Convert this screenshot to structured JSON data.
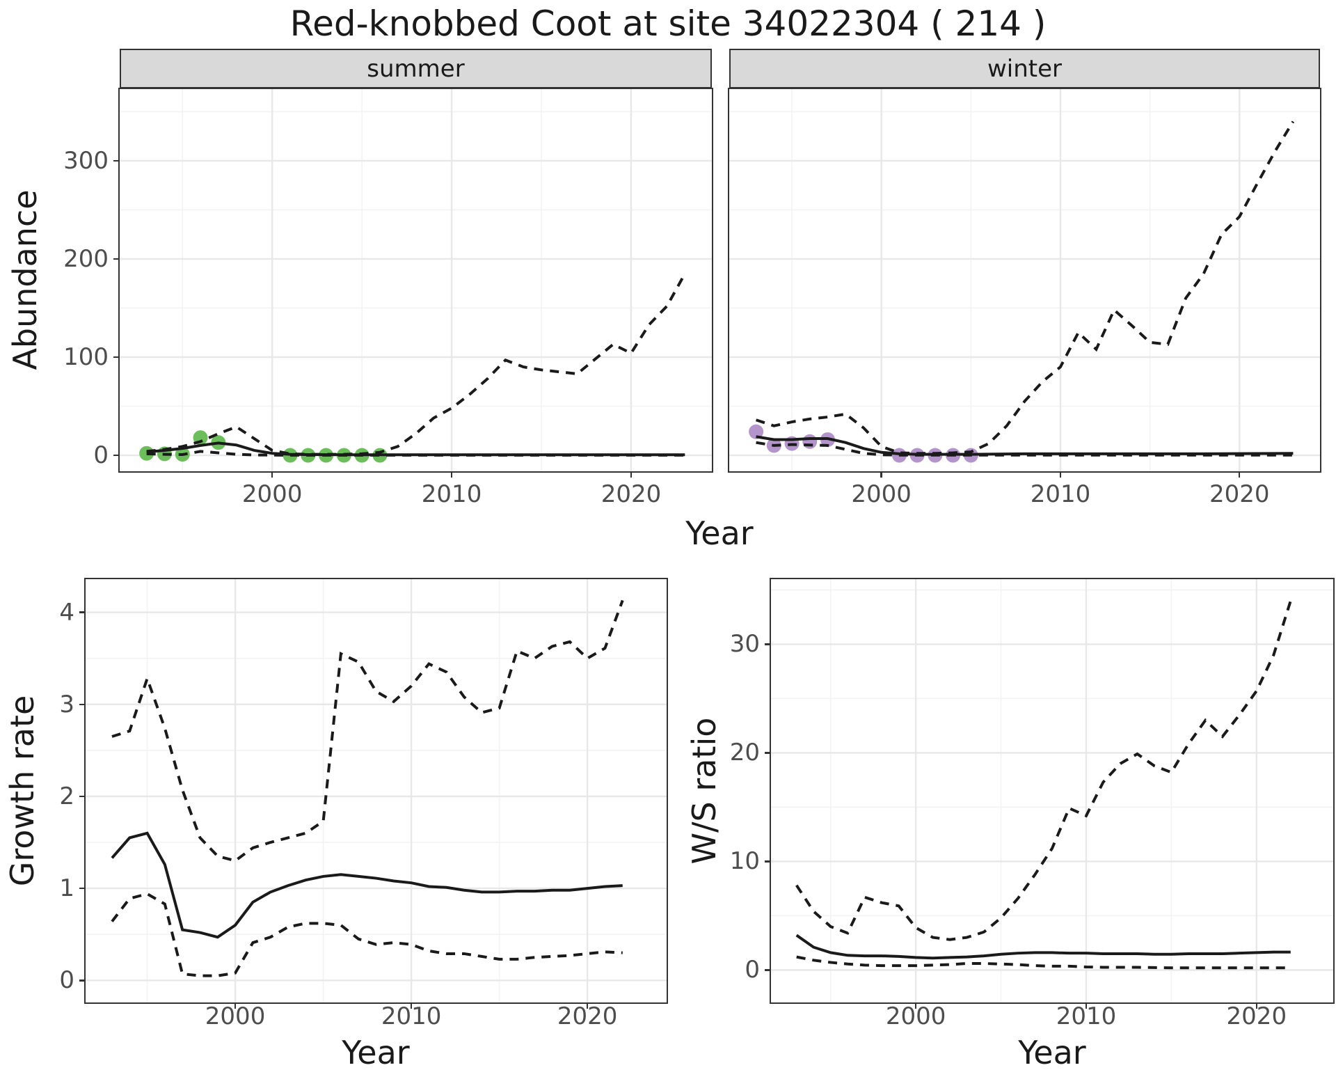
{
  "title": "Red-knobbed Coot at site 34022304 ( 214 )",
  "colors": {
    "summer_points": "#6CBE5B",
    "winter_points": "#B394CB",
    "line": "#1A1A1A",
    "grid_major": "#E8E8E8",
    "grid_minor": "#F3F3F3",
    "strip_bg": "#D9D9D9",
    "panel_border": "#333333",
    "tick_text": "#4D4D4D"
  },
  "chart_data": [
    {
      "type": "line",
      "facet": "summer",
      "ylabel": "Abundance",
      "xlabel": "Year",
      "grid": true,
      "legend": "none",
      "xlim": [
        1991.5,
        2024.5
      ],
      "ylim": [
        -16.3,
        373
      ],
      "xticks": [
        2000,
        2010,
        2020
      ],
      "yticks": [
        0,
        100,
        200,
        300
      ],
      "x": [
        1993,
        1994,
        1995,
        1996,
        1997,
        1998,
        1999,
        2000,
        2001,
        2002,
        2003,
        2004,
        2005,
        2006,
        2007,
        2008,
        2009,
        2010,
        2011,
        2012,
        2013,
        2014,
        2015,
        2016,
        2017,
        2018,
        2019,
        2020,
        2021,
        2022,
        2023
      ],
      "series": [
        {
          "name": "lower_ci",
          "style": "dashed",
          "values": [
            1.5,
            1,
            0.7,
            4,
            2.5,
            1,
            0.3,
            0.2,
            0.1,
            0.1,
            0.1,
            0.1,
            0.1,
            0.1,
            0.1,
            0.1,
            0.1,
            0.1,
            0.1,
            0.1,
            0.1,
            0.1,
            0.1,
            0.1,
            0.1,
            0.1,
            0.1,
            0.1,
            0.1,
            0.1,
            0.1
          ]
        },
        {
          "name": "upper_ci",
          "style": "dashed",
          "values": [
            4,
            6,
            9,
            14,
            22,
            29,
            17,
            5,
            1.5,
            1,
            1,
            1,
            1.5,
            3,
            9,
            22,
            38,
            48,
            62,
            78,
            97,
            90,
            87,
            85,
            83,
            98,
            113,
            104,
            133,
            152,
            185
          ]
        },
        {
          "name": "fit",
          "style": "solid",
          "values": [
            3.5,
            5,
            7,
            10,
            12.5,
            10.5,
            5,
            2,
            1,
            0.7,
            0.6,
            0.5,
            0.5,
            0.5,
            0.5,
            0.5,
            0.5,
            0.5,
            0.5,
            0.5,
            0.5,
            0.5,
            0.5,
            0.5,
            0.5,
            0.5,
            0.5,
            0.5,
            0.5,
            0.5,
            0.5
          ]
        }
      ],
      "points": {
        "name": "observed-summer",
        "color": "#6CBE5B",
        "x": [
          1993,
          1994,
          1995,
          1996,
          1997,
          2001,
          2002,
          2003,
          2004,
          2005,
          2006
        ],
        "y": [
          2,
          1.5,
          1,
          18,
          13,
          0,
          0,
          0,
          0,
          0,
          0
        ]
      }
    },
    {
      "type": "line",
      "facet": "winter",
      "ylabel": "Abundance",
      "xlabel": "Year",
      "grid": true,
      "legend": "none",
      "xlim": [
        1991.5,
        2024.5
      ],
      "ylim": [
        -16.3,
        373
      ],
      "xticks": [
        2000,
        2010,
        2020
      ],
      "yticks": [
        0,
        100,
        200,
        300
      ],
      "x": [
        1993,
        1994,
        1995,
        1996,
        1997,
        1998,
        1999,
        2000,
        2001,
        2002,
        2003,
        2004,
        2005,
        2006,
        2007,
        2008,
        2009,
        2010,
        2011,
        2012,
        2013,
        2014,
        2015,
        2016,
        2017,
        2018,
        2019,
        2020,
        2021,
        2022,
        2023
      ],
      "series": [
        {
          "name": "lower_ci",
          "style": "dashed",
          "values": [
            13,
            10,
            11,
            10.5,
            10,
            6,
            2,
            0.5,
            0.2,
            0.2,
            0.2,
            0.2,
            0.2,
            0.2,
            0.2,
            0.2,
            0.2,
            0.2,
            0.2,
            0.2,
            0.2,
            0.2,
            0.2,
            0.2,
            0.2,
            0.2,
            0.2,
            0.2,
            0.2,
            0.2,
            0.2
          ]
        },
        {
          "name": "upper_ci",
          "style": "dashed",
          "values": [
            36,
            30,
            34,
            37,
            39,
            42,
            28,
            9,
            2.5,
            2,
            2,
            2.5,
            3.5,
            12,
            30,
            55,
            75,
            90,
            125,
            108,
            148,
            132,
            115,
            113,
            160,
            185,
            225,
            243,
            277,
            310,
            340
          ]
        },
        {
          "name": "fit",
          "style": "solid",
          "values": [
            19,
            16,
            16,
            17,
            17,
            13,
            7,
            3,
            1.5,
            1,
            1,
            1,
            1,
            1.2,
            1.3,
            1.5,
            1.5,
            1.5,
            1.5,
            1.5,
            1.5,
            1.5,
            1.5,
            1.5,
            1.5,
            1.5,
            1.6,
            1.7,
            1.8,
            1.9,
            2
          ]
        }
      ],
      "points": {
        "name": "observed-winter",
        "color": "#B394CB",
        "x": [
          1993,
          1994,
          1995,
          1996,
          1997,
          2001,
          2002,
          2003,
          2004,
          2005
        ],
        "y": [
          24,
          10,
          12,
          14,
          16,
          0,
          0,
          0,
          0,
          0
        ]
      }
    },
    {
      "type": "line",
      "ylabel": "Growth rate",
      "xlabel": "Year",
      "grid": true,
      "legend": "none",
      "xlim": [
        1991.5,
        2024.5
      ],
      "ylim": [
        -0.24,
        4.36
      ],
      "xticks": [
        2000,
        2010,
        2020
      ],
      "yticks": [
        0,
        1,
        2,
        3,
        4
      ],
      "x": [
        1993,
        1994,
        1995,
        1996,
        1997,
        1998,
        1999,
        2000,
        2001,
        2002,
        2003,
        2004,
        2005,
        2006,
        2007,
        2008,
        2009,
        2010,
        2011,
        2012,
        2013,
        2014,
        2015,
        2016,
        2017,
        2018,
        2019,
        2020,
        2021,
        2022
      ],
      "series": [
        {
          "name": "lower_ci",
          "style": "dashed",
          "values": [
            0.64,
            0.89,
            0.94,
            0.83,
            0.07,
            0.05,
            0.05,
            0.08,
            0.41,
            0.47,
            0.58,
            0.62,
            0.62,
            0.6,
            0.45,
            0.39,
            0.41,
            0.39,
            0.32,
            0.29,
            0.29,
            0.26,
            0.23,
            0.23,
            0.25,
            0.26,
            0.27,
            0.29,
            0.31,
            0.3
          ]
        },
        {
          "name": "upper_ci",
          "style": "dashed",
          "values": [
            2.65,
            2.71,
            3.28,
            2.74,
            2.07,
            1.55,
            1.35,
            1.3,
            1.44,
            1.5,
            1.55,
            1.6,
            1.73,
            3.55,
            3.46,
            3.14,
            3.03,
            3.2,
            3.44,
            3.35,
            3.08,
            2.91,
            2.96,
            3.58,
            3.5,
            3.63,
            3.68,
            3.5,
            3.61,
            4.13
          ]
        },
        {
          "name": "fit",
          "style": "solid",
          "values": [
            1.33,
            1.55,
            1.6,
            1.26,
            0.55,
            0.52,
            0.47,
            0.6,
            0.85,
            0.96,
            1.03,
            1.09,
            1.13,
            1.15,
            1.13,
            1.11,
            1.08,
            1.06,
            1.02,
            1.01,
            0.98,
            0.96,
            0.96,
            0.97,
            0.97,
            0.98,
            0.98,
            1.0,
            1.02,
            1.03
          ]
        }
      ]
    },
    {
      "type": "line",
      "ylabel": "W/S ratio",
      "xlabel": "Year",
      "grid": true,
      "legend": "none",
      "xlim": [
        1991.5,
        2024.5
      ],
      "ylim": [
        -2.99,
        35.99
      ],
      "xticks": [
        2000,
        2010,
        2020
      ],
      "yticks": [
        0,
        10,
        20,
        30
      ],
      "x": [
        1993,
        1994,
        1995,
        1996,
        1997,
        1998,
        1999,
        2000,
        2001,
        2002,
        2003,
        2004,
        2005,
        2006,
        2007,
        2008,
        2009,
        2010,
        2011,
        2012,
        2013,
        2014,
        2015,
        2016,
        2017,
        2018,
        2019,
        2020,
        2021,
        2022
      ],
      "series": [
        {
          "name": "lower_ci",
          "style": "dashed",
          "values": [
            1.2,
            0.9,
            0.7,
            0.55,
            0.45,
            0.4,
            0.4,
            0.4,
            0.45,
            0.5,
            0.6,
            0.6,
            0.55,
            0.5,
            0.4,
            0.35,
            0.35,
            0.28,
            0.25,
            0.25,
            0.25,
            0.22,
            0.2,
            0.2,
            0.2,
            0.2,
            0.2,
            0.2,
            0.2,
            0.2
          ]
        },
        {
          "name": "upper_ci",
          "style": "dashed",
          "values": [
            7.8,
            5.4,
            4.0,
            3.4,
            6.7,
            6.2,
            5.9,
            3.9,
            3.0,
            2.8,
            3.0,
            3.5,
            4.8,
            6.6,
            8.8,
            11.2,
            14.9,
            14.2,
            17.3,
            19.0,
            19.9,
            18.8,
            18.2,
            20.8,
            23.0,
            21.5,
            23.5,
            25.7,
            29.0,
            34.0
          ]
        },
        {
          "name": "fit",
          "style": "solid",
          "values": [
            3.2,
            2.1,
            1.6,
            1.35,
            1.3,
            1.3,
            1.25,
            1.15,
            1.1,
            1.15,
            1.2,
            1.3,
            1.45,
            1.55,
            1.6,
            1.6,
            1.55,
            1.55,
            1.5,
            1.5,
            1.5,
            1.45,
            1.45,
            1.5,
            1.5,
            1.5,
            1.55,
            1.6,
            1.65,
            1.65
          ]
        }
      ]
    }
  ]
}
